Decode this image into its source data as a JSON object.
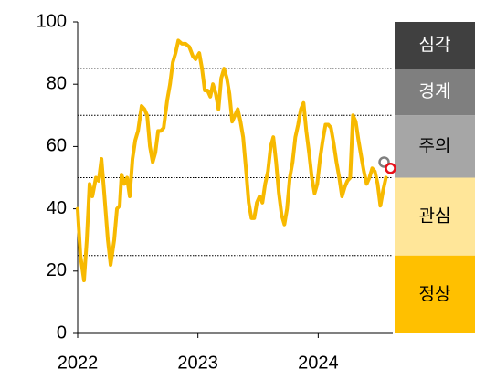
{
  "chart_data": {
    "type": "line",
    "x": [
      2022.0,
      2022.023,
      2022.053,
      2022.076,
      2022.099,
      2022.122,
      2022.152,
      2022.175,
      2022.198,
      2022.221,
      2022.251,
      2022.274,
      2022.304,
      2022.327,
      2022.35,
      2022.365,
      2022.388,
      2022.411,
      2022.433,
      2022.456,
      2022.479,
      2022.502,
      2022.532,
      2022.555,
      2022.578,
      2022.601,
      2022.624,
      2022.646,
      2022.669,
      2022.692,
      2022.715,
      2022.745,
      2022.768,
      2022.791,
      2022.814,
      2022.837,
      2022.867,
      2022.897,
      2022.928,
      2022.958,
      2022.981,
      2023.011,
      2023.034,
      2023.057,
      2023.08,
      2023.103,
      2023.125,
      2023.148,
      2023.171,
      2023.194,
      2023.217,
      2023.24,
      2023.262,
      2023.285,
      2023.308,
      2023.331,
      2023.354,
      2023.376,
      2023.399,
      2023.422,
      2023.445,
      2023.468,
      2023.49,
      2023.513,
      2023.536,
      2023.559,
      2023.582,
      2023.605,
      2023.627,
      2023.65,
      2023.673,
      2023.696,
      2023.719,
      2023.741,
      2023.764,
      2023.787,
      2023.81,
      2023.833,
      2023.856,
      2023.878,
      2023.901,
      2023.924,
      2023.947,
      2023.97,
      2023.992,
      2024.015,
      2024.038,
      2024.061,
      2024.084,
      2024.106,
      2024.129,
      2024.152,
      2024.175,
      2024.198,
      2024.221,
      2024.243,
      2024.266,
      2024.289,
      2024.312,
      2024.335,
      2024.357,
      2024.38,
      2024.403,
      2024.426,
      2024.449,
      2024.471,
      2024.494,
      2024.517,
      2024.54,
      2024.563
    ],
    "values": [
      40,
      25,
      17,
      30,
      48,
      44,
      50,
      49,
      56,
      45,
      30,
      22,
      30,
      40,
      41,
      51,
      48,
      50,
      44,
      56,
      62,
      65,
      73,
      72,
      70,
      60,
      55,
      58,
      65,
      65,
      66,
      75,
      80,
      87,
      90,
      94,
      93,
      93,
      92,
      89,
      88,
      90,
      85,
      78,
      78,
      76,
      80,
      77,
      72,
      82,
      85,
      82,
      77,
      68,
      70,
      72,
      68,
      63,
      53,
      42,
      37,
      37,
      42,
      44,
      42,
      48,
      52,
      60,
      63,
      55,
      45,
      38,
      35,
      40,
      50,
      55,
      63,
      67,
      72,
      74,
      65,
      58,
      50,
      45,
      48,
      56,
      62,
      67,
      67,
      66,
      61,
      55,
      50,
      44,
      47,
      49,
      50,
      70,
      68,
      62,
      57,
      52,
      48,
      50,
      53,
      52,
      48,
      41,
      46,
      50
    ],
    "color": "#f7b900",
    "xlim": [
      2022,
      2024.62
    ],
    "xticks": [
      2022,
      2023,
      2024
    ],
    "ylim": [
      0,
      100
    ],
    "yticks": [
      0,
      20,
      40,
      60,
      80,
      100
    ],
    "bands": [
      {
        "label": "심각",
        "from": 85,
        "to": 100,
        "color": "#404040",
        "text_color": "#ffffff"
      },
      {
        "label": "경계",
        "from": 70,
        "to": 85,
        "color": "#7f7f7f",
        "text_color": "#ffffff"
      },
      {
        "label": "주의",
        "from": 50,
        "to": 70,
        "color": "#a6a6a6",
        "text_color": "#000000"
      },
      {
        "label": "관심",
        "from": 25,
        "to": 50,
        "color": "#ffe699",
        "text_color": "#000000"
      },
      {
        "label": "정상",
        "from": 0,
        "to": 25,
        "color": "#ffc000",
        "text_color": "#000000"
      }
    ],
    "markers": [
      {
        "x": 2024.548,
        "value": 55,
        "color": "#7f7f7f"
      },
      {
        "x": 2024.601,
        "value": 53,
        "color": "#e8101a"
      }
    ]
  }
}
